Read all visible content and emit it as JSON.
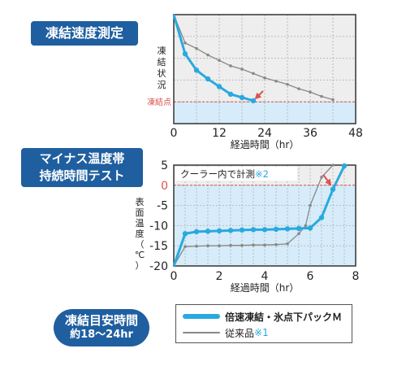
{
  "badges": {
    "speed_test": "凍結速度測定",
    "duration_line1": "マイナス温度帯",
    "duration_line2": "持続時間テスト",
    "freeze_time_line1": "凍結目安時間",
    "freeze_time_line2": "約18〜24hr"
  },
  "legend": {
    "series_a": "倍速凍結・氷点下パックＭ",
    "series_b": "従来品",
    "series_b_note": "※1"
  },
  "colors": {
    "series_a": "#29a9df",
    "series_b": "#888888",
    "freeze_line": "#d9534f",
    "zone": "#d6ecfa"
  },
  "chart_data": [
    {
      "type": "line",
      "xlabel": "経過時間（hr）",
      "ylabel": "凍結状況",
      "xlim": [
        0,
        48
      ],
      "xticks": [
        0,
        12,
        24,
        36,
        48
      ],
      "ylim": [
        0,
        10
      ],
      "freeze_label": "凍結点",
      "freeze_level": 2,
      "grid": true,
      "series": [
        {
          "key": "a",
          "x": [
            0,
            3,
            6,
            9,
            12,
            15,
            18,
            21
          ],
          "y": [
            10,
            6.4,
            4.9,
            4.1,
            3.4,
            2.7,
            2.4,
            2.1
          ]
        },
        {
          "key": "b",
          "x": [
            0,
            3,
            6,
            9,
            12,
            15,
            18,
            21,
            24,
            27,
            30,
            33,
            36,
            39,
            42
          ],
          "y": [
            10,
            7.4,
            6.9,
            6.3,
            5.8,
            5.3,
            5.0,
            4.6,
            4.2,
            3.9,
            3.6,
            3.2,
            2.9,
            2.5,
            2.2
          ]
        }
      ]
    },
    {
      "type": "line",
      "xlabel": "経過時間（hr）",
      "ylabel": "表面温度（℃）",
      "xlim": [
        0,
        8
      ],
      "xticks": [
        0,
        2,
        4,
        6,
        8
      ],
      "ylim": [
        -20,
        5
      ],
      "yticks": [
        5,
        0,
        -5,
        -10,
        -15,
        -20
      ],
      "annotation": "クーラー内で計測",
      "annotation_note": "※2",
      "grid": true,
      "series": [
        {
          "key": "a",
          "x": [
            0,
            0.5,
            1,
            1.5,
            2,
            2.5,
            3,
            3.5,
            4,
            4.5,
            5,
            5.5,
            6,
            6.5,
            7,
            7.5
          ],
          "y": [
            -20,
            -12,
            -11.5,
            -11.4,
            -11.3,
            -11.2,
            -11.1,
            -11.0,
            -11.0,
            -10.9,
            -10.8,
            -10.7,
            -10.6,
            -8.0,
            -1.0,
            4.8
          ]
        },
        {
          "key": "b",
          "x": [
            0,
            0.5,
            1,
            1.5,
            2,
            2.5,
            3,
            3.5,
            4,
            4.5,
            5,
            5.5,
            5.8,
            6,
            6.5,
            7
          ],
          "y": [
            -20,
            -15.2,
            -15.1,
            -15.0,
            -15.0,
            -14.9,
            -14.9,
            -14.8,
            -14.8,
            -14.7,
            -14.5,
            -12.0,
            -10.0,
            -5.0,
            2.0,
            5.0
          ]
        }
      ]
    }
  ]
}
